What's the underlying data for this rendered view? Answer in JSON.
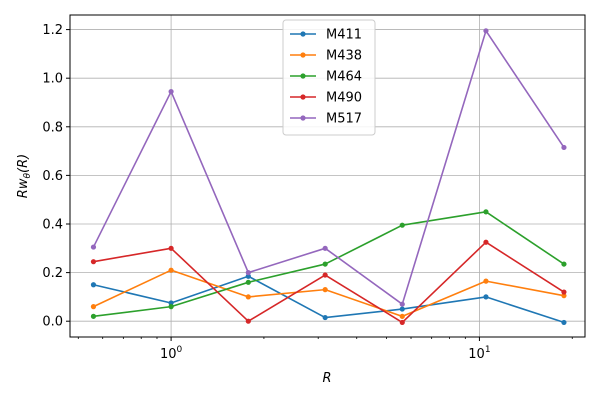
{
  "chart_data": {
    "type": "line",
    "x": [
      0.56,
      1.0,
      1.78,
      3.16,
      5.62,
      10.5,
      18.8
    ],
    "xscale": "log",
    "xlim": [
      0.47,
      22.0
    ],
    "ylim": [
      -0.065,
      1.26
    ],
    "xlabel": "R",
    "ylabel": "Rwθ(R)",
    "ylabel_parts": {
      "main": "Rw",
      "sub": "θ",
      "tail": "(R)"
    },
    "x_major_ticks": [
      {
        "value": 1,
        "base": "10",
        "exp": "0"
      },
      {
        "value": 10,
        "base": "10",
        "exp": "1"
      }
    ],
    "x_minor_ticks": [
      0.5,
      0.6,
      0.7,
      0.8,
      0.9,
      2,
      3,
      4,
      5,
      6,
      7,
      8,
      9,
      20
    ],
    "y_ticks": [
      0.0,
      0.2,
      0.4,
      0.6,
      0.8,
      1.0,
      1.2
    ],
    "y_tick_labels": [
      "0.0",
      "0.2",
      "0.4",
      "0.6",
      "0.8",
      "1.0",
      "1.2"
    ],
    "grid": true,
    "legend_position": "top-center",
    "series": [
      {
        "name": "M411",
        "color": "#1f77b4",
        "values": [
          0.15,
          0.075,
          0.185,
          0.015,
          0.05,
          0.1,
          -0.005
        ]
      },
      {
        "name": "M438",
        "color": "#ff7f0e",
        "values": [
          0.06,
          0.21,
          0.1,
          0.13,
          0.02,
          0.165,
          0.105
        ]
      },
      {
        "name": "M464",
        "color": "#2ca02c",
        "values": [
          0.02,
          0.06,
          0.16,
          0.235,
          0.395,
          0.45,
          0.235
        ]
      },
      {
        "name": "M490",
        "color": "#d62728",
        "values": [
          0.245,
          0.3,
          0.0,
          0.19,
          -0.005,
          0.325,
          0.12
        ]
      },
      {
        "name": "M517",
        "color": "#9467bd",
        "values": [
          0.305,
          0.945,
          0.2,
          0.3,
          0.07,
          1.195,
          0.715
        ]
      }
    ]
  }
}
